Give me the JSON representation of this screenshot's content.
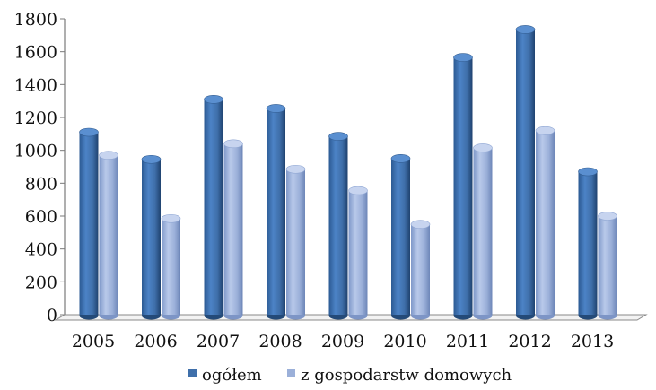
{
  "chart_data": {
    "type": "bar",
    "title": "",
    "xlabel": "",
    "ylabel": "",
    "categories": [
      "2005",
      "2006",
      "2007",
      "2008",
      "2009",
      "2010",
      "2011",
      "2012",
      "2013"
    ],
    "series": [
      {
        "name": "ogółem",
        "color": "#3f6faa",
        "values": [
          1110,
          945,
          1310,
          1255,
          1085,
          950,
          1565,
          1735,
          870
        ]
      },
      {
        "name": "z gospodarstw domowych",
        "color": "#9bb0d9",
        "values": [
          970,
          585,
          1040,
          885,
          755,
          550,
          1015,
          1120,
          600
        ]
      }
    ],
    "ylim": [
      0,
      1800
    ],
    "yticks": [
      0,
      200,
      400,
      600,
      800,
      1000,
      1200,
      1400,
      1600,
      1800
    ],
    "grid": false,
    "legend_position": "bottom",
    "style": "3d-cylinder"
  }
}
